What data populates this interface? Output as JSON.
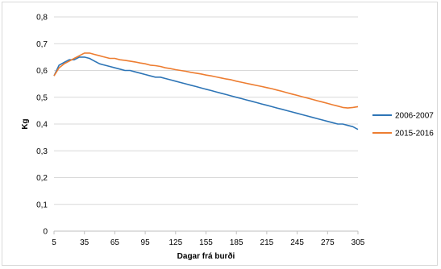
{
  "chart_data": {
    "type": "line",
    "title": "",
    "xlabel": "Dagar frá burði",
    "ylabel": "Kg",
    "xlim": [
      5,
      305
    ],
    "ylim": [
      0,
      0.8
    ],
    "x_ticks": [
      "5",
      "35",
      "65",
      "95",
      "125",
      "155",
      "185",
      "215",
      "245",
      "275",
      "305"
    ],
    "y_ticks": [
      "0",
      "0,1",
      "0,2",
      "0,3",
      "0,4",
      "0,5",
      "0,6",
      "0,7",
      "0,8"
    ],
    "grid": true,
    "legend_position": "right",
    "series": [
      {
        "name": "2006-2007",
        "color": "#2e75b6",
        "x": [
          5,
          10,
          15,
          20,
          25,
          30,
          35,
          40,
          45,
          50,
          55,
          60,
          65,
          70,
          75,
          80,
          85,
          90,
          95,
          100,
          105,
          110,
          115,
          120,
          125,
          130,
          135,
          140,
          145,
          150,
          155,
          160,
          165,
          170,
          175,
          180,
          185,
          190,
          195,
          200,
          205,
          210,
          215,
          220,
          225,
          230,
          235,
          240,
          245,
          250,
          255,
          260,
          265,
          270,
          275,
          280,
          285,
          290,
          295,
          300,
          305
        ],
        "y": [
          0.58,
          0.62,
          0.63,
          0.64,
          0.64,
          0.65,
          0.65,
          0.645,
          0.635,
          0.625,
          0.62,
          0.615,
          0.61,
          0.605,
          0.6,
          0.6,
          0.595,
          0.59,
          0.585,
          0.58,
          0.575,
          0.575,
          0.57,
          0.565,
          0.56,
          0.555,
          0.55,
          0.545,
          0.54,
          0.535,
          0.53,
          0.525,
          0.52,
          0.515,
          0.51,
          0.505,
          0.5,
          0.495,
          0.49,
          0.485,
          0.48,
          0.475,
          0.47,
          0.465,
          0.46,
          0.455,
          0.45,
          0.445,
          0.44,
          0.435,
          0.43,
          0.425,
          0.42,
          0.415,
          0.41,
          0.405,
          0.4,
          0.4,
          0.395,
          0.39,
          0.38
        ]
      },
      {
        "name": "2015-2016",
        "color": "#ed7d31",
        "x": [
          5,
          10,
          15,
          20,
          25,
          30,
          35,
          40,
          45,
          50,
          55,
          60,
          65,
          70,
          75,
          80,
          85,
          90,
          95,
          100,
          105,
          110,
          115,
          120,
          125,
          130,
          135,
          140,
          145,
          150,
          155,
          160,
          165,
          170,
          175,
          180,
          185,
          190,
          195,
          200,
          205,
          210,
          215,
          220,
          225,
          230,
          235,
          240,
          245,
          250,
          255,
          260,
          265,
          270,
          275,
          280,
          285,
          290,
          295,
          300,
          305
        ],
        "y": [
          0.58,
          0.61,
          0.625,
          0.635,
          0.645,
          0.655,
          0.665,
          0.665,
          0.66,
          0.655,
          0.65,
          0.645,
          0.645,
          0.64,
          0.638,
          0.635,
          0.632,
          0.628,
          0.625,
          0.62,
          0.618,
          0.615,
          0.61,
          0.607,
          0.603,
          0.6,
          0.597,
          0.593,
          0.59,
          0.587,
          0.583,
          0.58,
          0.576,
          0.572,
          0.568,
          0.565,
          0.56,
          0.556,
          0.552,
          0.548,
          0.544,
          0.54,
          0.536,
          0.532,
          0.527,
          0.522,
          0.517,
          0.512,
          0.507,
          0.502,
          0.497,
          0.492,
          0.487,
          0.482,
          0.477,
          0.472,
          0.467,
          0.462,
          0.46,
          0.462,
          0.465
        ]
      }
    ]
  }
}
